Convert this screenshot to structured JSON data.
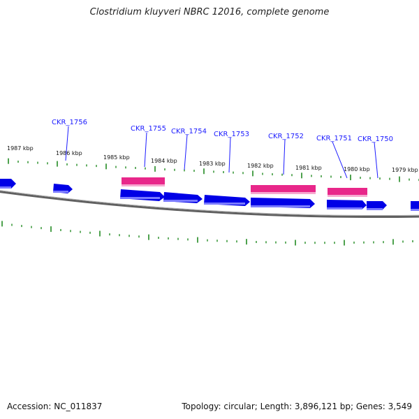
{
  "title": "Clostridium kluyveri NBRC 12016, complete genome",
  "footer": {
    "accession": "Accession: NC_011837",
    "summary": "Topology: circular; Length: 3,896,121 bp; Genes: 3,549"
  },
  "colors": {
    "forward_gene": "#0000e6",
    "reverse_gene": "#e8278a",
    "tick": "#228b22",
    "backbone": "#808080",
    "label_line": "#1a1aff"
  },
  "kbp_labels": [
    "1987 kbp",
    "1986 kbp",
    "1985 kbp",
    "1984 kbp",
    "1983 kbp",
    "1982 kbp",
    "1981 kbp",
    "1980 kbp",
    "1979 kbp"
  ],
  "gene_labels": [
    "CKR_1756",
    "CKR_1755",
    "CKR_1754",
    "CKR_1753",
    "CKR_1752",
    "CKR_1751",
    "CKR_1750"
  ]
}
